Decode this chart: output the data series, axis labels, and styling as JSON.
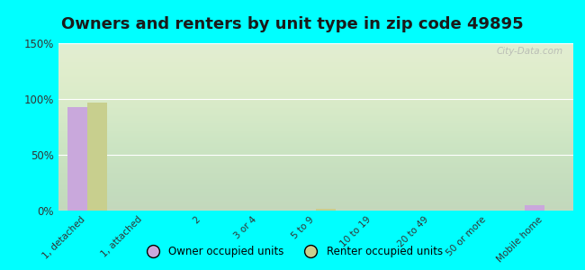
{
  "title": "Owners and renters by unit type in zip code 49895",
  "categories": [
    "1, detached",
    "1, attached",
    "2",
    "3 or 4",
    "5 to 9",
    "10 to 19",
    "20 to 49",
    "50 or more",
    "Mobile home"
  ],
  "owner_values": [
    93,
    0,
    0,
    0,
    0,
    0,
    0,
    0,
    5
  ],
  "renter_values": [
    97,
    0,
    0,
    0,
    2,
    0,
    0,
    0,
    0
  ],
  "owner_color": "#c9a8dc",
  "renter_color": "#c8cf8e",
  "background_outer": "#00ffff",
  "ylim": [
    0,
    150
  ],
  "yticks": [
    0,
    50,
    100,
    150
  ],
  "title_fontsize": 13,
  "legend_labels": [
    "Owner occupied units",
    "Renter occupied units"
  ],
  "watermark": "City-Data.com"
}
